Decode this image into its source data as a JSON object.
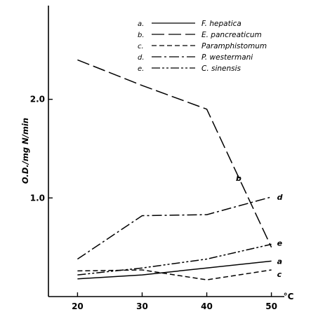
{
  "chart_data": {
    "type": "line",
    "title": "",
    "xlabel": "",
    "x_unit": "°C",
    "ylabel": "O.D./mg N/min",
    "x": [
      20,
      30,
      40,
      50
    ],
    "xticks": [
      "20",
      "30",
      "40",
      "50"
    ],
    "yticks": [
      "1.0",
      "2.0"
    ],
    "ylim": [
      0,
      2.95
    ],
    "xlim": [
      15.5,
      52
    ],
    "grid": false,
    "legend_position": "top-right",
    "series": [
      {
        "key": "a",
        "legend_key": "a.",
        "name": "F. hepatica",
        "dash": "solid",
        "values": [
          0.18,
          0.22,
          0.29,
          0.36
        ]
      },
      {
        "key": "b",
        "legend_key": "b.",
        "name": "E. pancreaticum",
        "dash": "longdash",
        "values": [
          2.4,
          2.14,
          1.9,
          0.5
        ]
      },
      {
        "key": "c",
        "legend_key": "c.",
        "name": "Paramphistomum",
        "dash": "dash",
        "values": [
          0.26,
          0.27,
          0.17,
          0.27
        ]
      },
      {
        "key": "d",
        "legend_key": "d.",
        "name": "P. westermani",
        "dash": "dashdot",
        "values": [
          0.38,
          0.82,
          0.83,
          1.01
        ]
      },
      {
        "key": "e",
        "legend_key": "e.",
        "name": "C. sinensis",
        "dash": "dashdotdot",
        "values": [
          0.22,
          0.29,
          0.38,
          0.53
        ]
      }
    ],
    "curve_labels": [
      "a",
      "b",
      "c",
      "d",
      "e"
    ]
  }
}
